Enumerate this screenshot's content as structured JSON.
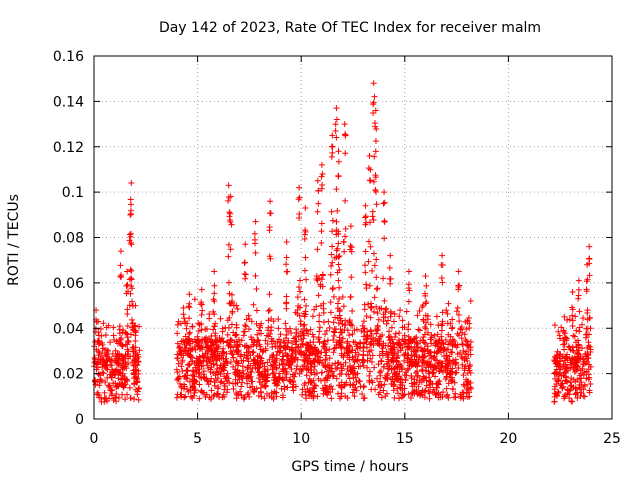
{
  "chart_data": {
    "type": "scatter",
    "title": "Day 142 of 2023, Rate Of TEC Index for receiver malm",
    "xlabel": "GPS time / hours",
    "ylabel": "ROTI / TECUs",
    "xlim": [
      0,
      25
    ],
    "ylim": [
      0,
      0.16
    ],
    "x_ticks": [
      "0",
      "5",
      "10",
      "15",
      "20",
      "25"
    ],
    "y_ticks": [
      "0",
      "0.02",
      "0.04",
      "0.06",
      "0.08",
      "0.1",
      "0.12",
      "0.14",
      "0.16"
    ],
    "grid": true,
    "marker": "plus",
    "color": "#ff0000",
    "segments": [
      {
        "x_start": 0.0,
        "x_end": 2.2,
        "base": 0.018,
        "peaks": [
          [
            0.1,
            0.048
          ],
          [
            0.2,
            0.043
          ],
          [
            1.3,
            0.074
          ],
          [
            1.6,
            0.065
          ],
          [
            1.75,
            0.09
          ],
          [
            1.8,
            0.104
          ],
          [
            2.0,
            0.05
          ]
        ]
      },
      {
        "x_start": 4.0,
        "x_end": 18.2,
        "base": 0.022,
        "peaks": [
          [
            4.6,
            0.055
          ],
          [
            5.2,
            0.057
          ],
          [
            5.8,
            0.065
          ],
          [
            6.5,
            0.103
          ],
          [
            6.6,
            0.098
          ],
          [
            7.3,
            0.077
          ],
          [
            7.8,
            0.087
          ],
          [
            8.5,
            0.096
          ],
          [
            9.3,
            0.078
          ],
          [
            9.9,
            0.102
          ],
          [
            10.2,
            0.093
          ],
          [
            10.8,
            0.105
          ],
          [
            11.0,
            0.112
          ],
          [
            11.5,
            0.125
          ],
          [
            11.7,
            0.137
          ],
          [
            11.8,
            0.118
          ],
          [
            12.1,
            0.13
          ],
          [
            12.4,
            0.085
          ],
          [
            13.1,
            0.094
          ],
          [
            13.3,
            0.116
          ],
          [
            13.5,
            0.148
          ],
          [
            13.6,
            0.136
          ],
          [
            14.0,
            0.1
          ],
          [
            14.3,
            0.072
          ],
          [
            15.2,
            0.065
          ],
          [
            16.0,
            0.063
          ],
          [
            16.8,
            0.072
          ],
          [
            17.6,
            0.065
          ]
        ]
      },
      {
        "x_start": 22.2,
        "x_end": 24.0,
        "base": 0.018,
        "peaks": [
          [
            22.7,
            0.045
          ],
          [
            23.1,
            0.056
          ],
          [
            23.4,
            0.061
          ],
          [
            23.9,
            0.076
          ],
          [
            23.8,
            0.068
          ]
        ]
      }
    ]
  }
}
